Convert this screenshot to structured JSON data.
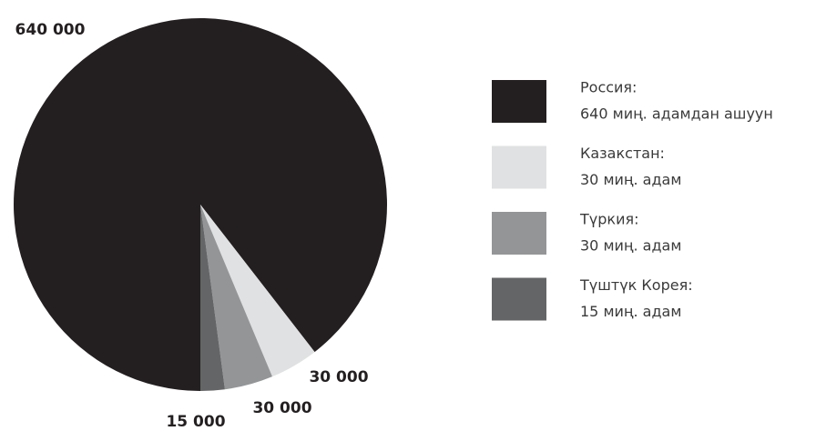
{
  "chart_data": {
    "type": "pie",
    "categories": [
      "Россия:",
      "Казакстан:",
      "Түркия:",
      "Түштүк Корея:"
    ],
    "category_notes": [
      "640 миң. адамдан ашуун",
      "30 миң. адам",
      "30 миң. адам",
      "15 миң. адам"
    ],
    "values": [
      640000,
      30000,
      30000,
      15000
    ],
    "value_labels": [
      "640 000",
      "30 000",
      "30 000",
      "15 000"
    ],
    "colors": [
      "#231f20",
      "#e0e1e2",
      "#939597",
      "#646567"
    ],
    "start_angle": 180,
    "legend": "right"
  }
}
